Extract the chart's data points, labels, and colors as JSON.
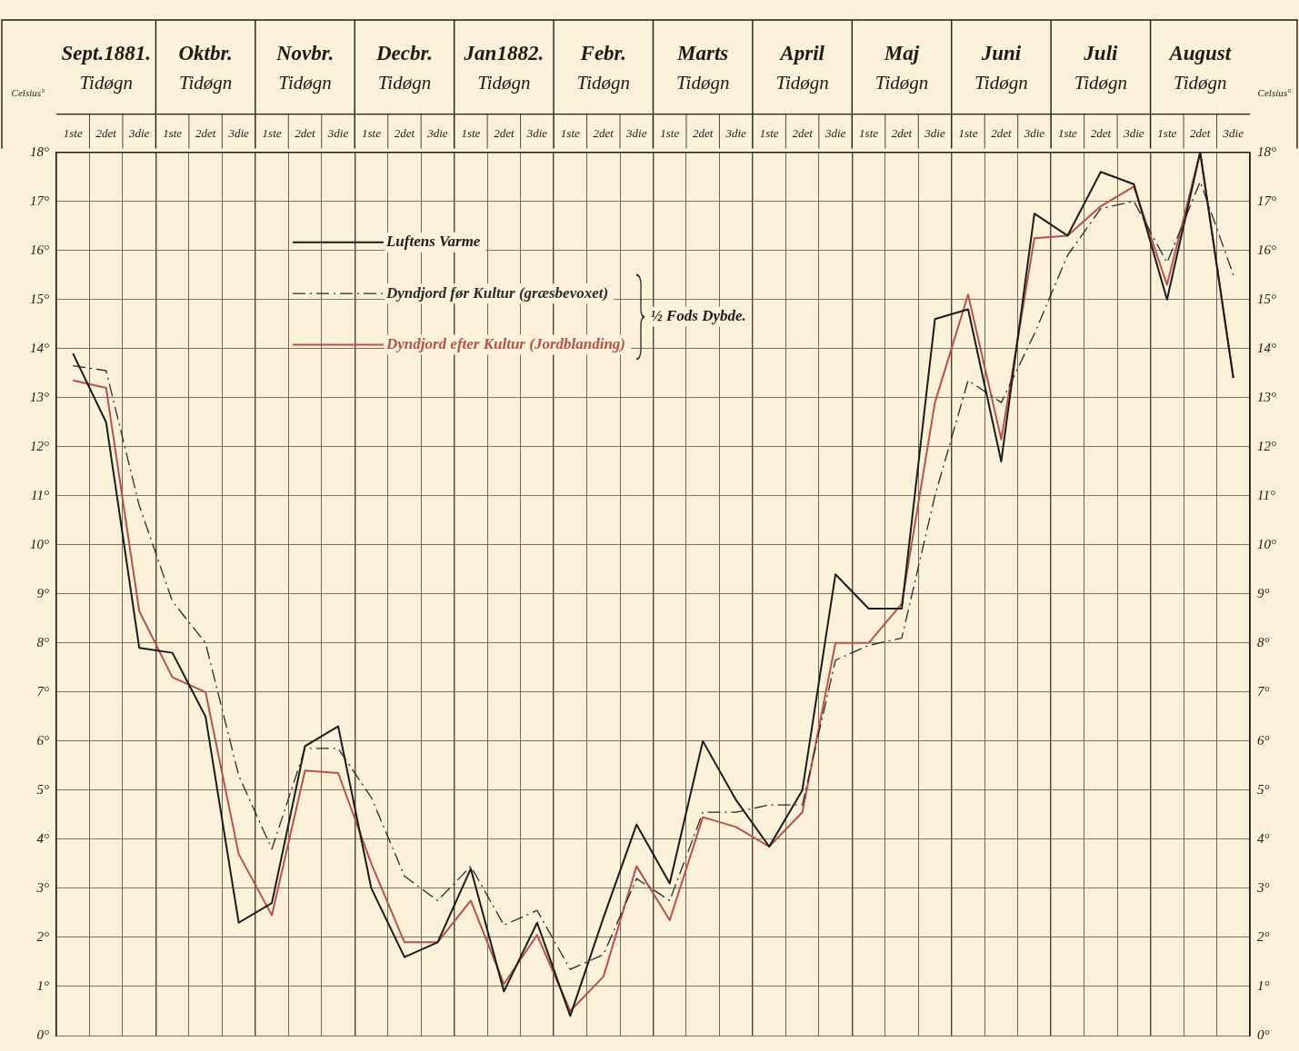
{
  "chart_data": {
    "type": "line",
    "categories": [
      "1ste",
      "2det",
      "3die",
      "1ste",
      "2det",
      "3die",
      "1ste",
      "2det",
      "3die",
      "1ste",
      "2det",
      "3die",
      "1ste",
      "2det",
      "3die",
      "1ste",
      "2det",
      "3die",
      "1ste",
      "2det",
      "3die",
      "1ste",
      "2det",
      "3die",
      "1ste",
      "2det",
      "3die",
      "1ste",
      "2det",
      "3die",
      "1ste",
      "2det",
      "3die",
      "1ste",
      "2det",
      "3die"
    ],
    "series": [
      {
        "name": "Luftens Varme",
        "color": "#1a1a1a",
        "line_style": "solid",
        "values": [
          13.9,
          12.5,
          7.9,
          7.8,
          6.5,
          2.3,
          2.7,
          5.9,
          6.3,
          3.0,
          1.6,
          1.9,
          3.4,
          0.9,
          2.3,
          0.4,
          2.4,
          4.3,
          3.1,
          6.0,
          4.8,
          3.85,
          5.0,
          9.4,
          8.7,
          8.7,
          14.6,
          14.8,
          11.7,
          16.75,
          16.3,
          17.6,
          17.35,
          15.0,
          18.0,
          13.4
        ]
      },
      {
        "name": "Dyndjord før Kultur (græsbevoxet)",
        "color": "#2a2a2a",
        "line_style": "dashed",
        "values": [
          13.65,
          13.55,
          10.8,
          8.85,
          8.0,
          5.3,
          3.8,
          5.85,
          5.85,
          4.85,
          3.25,
          2.75,
          3.45,
          2.25,
          2.55,
          1.35,
          1.65,
          3.2,
          2.75,
          4.55,
          4.55,
          4.7,
          4.7,
          7.65,
          7.95,
          8.1,
          11.0,
          13.35,
          12.9,
          14.3,
          15.9,
          16.85,
          17.0,
          15.75,
          17.4,
          15.5
        ]
      },
      {
        "name": "Dyndjord efter Kultur (Jordblanding)",
        "color": "#b5524a",
        "line_style": "solid",
        "values": [
          13.35,
          13.2,
          8.65,
          7.3,
          7.0,
          3.7,
          2.45,
          5.4,
          5.35,
          3.5,
          1.9,
          1.9,
          2.75,
          1.05,
          2.05,
          0.5,
          1.2,
          3.45,
          2.35,
          4.45,
          4.25,
          3.85,
          4.55,
          8.0,
          8.0,
          8.8,
          12.9,
          15.1,
          12.15,
          16.25,
          16.3,
          16.9,
          17.3,
          15.3,
          18.0,
          13.4
        ]
      }
    ],
    "ylabel": "Celsius°",
    "y2label": "Celsius°",
    "ylim": [
      0,
      18
    ],
    "yticks": [
      {
        "value": 0,
        "label": "0°"
      },
      {
        "value": 1,
        "label": "1°"
      },
      {
        "value": 2,
        "label": "2°"
      },
      {
        "value": 3,
        "label": "3°"
      },
      {
        "value": 4,
        "label": "4°"
      },
      {
        "value": 5,
        "label": "5°"
      },
      {
        "value": 6,
        "label": "6°"
      },
      {
        "value": 7,
        "label": "7°"
      },
      {
        "value": 8,
        "label": "8°"
      },
      {
        "value": 9,
        "label": "9°"
      },
      {
        "value": 10,
        "label": "10°"
      },
      {
        "value": 11,
        "label": "11°"
      },
      {
        "value": 12,
        "label": "12°"
      },
      {
        "value": 13,
        "label": "13°"
      },
      {
        "value": 14,
        "label": "14°"
      },
      {
        "value": 15,
        "label": "15°"
      },
      {
        "value": 16,
        "label": "16°"
      },
      {
        "value": 17,
        "label": "17°"
      },
      {
        "value": 18,
        "label": "18°"
      }
    ],
    "y2lim": [
      0,
      18
    ],
    "y2ticks": [
      {
        "value": 0,
        "label": "0°"
      },
      {
        "value": 1,
        "label": "1°"
      },
      {
        "value": 2,
        "label": "2°"
      },
      {
        "value": 3,
        "label": "3°"
      },
      {
        "value": 4,
        "label": "4°"
      },
      {
        "value": 5,
        "label": "5°"
      },
      {
        "value": 6,
        "label": "6°"
      },
      {
        "value": 7,
        "label": "7°"
      },
      {
        "value": 8,
        "label": "8°"
      },
      {
        "value": 9,
        "label": "9°"
      },
      {
        "value": 10,
        "label": "10°"
      },
      {
        "value": 11,
        "label": "11°"
      },
      {
        "value": 12,
        "label": "12°"
      },
      {
        "value": 13,
        "label": "13°"
      },
      {
        "value": 14,
        "label": "14°"
      },
      {
        "value": 15,
        "label": "15°"
      },
      {
        "value": 16,
        "label": "16°"
      },
      {
        "value": 17,
        "label": "17°"
      },
      {
        "value": 18,
        "label": "18°"
      }
    ],
    "annotations": [
      "Sept.1881. Tidøgn",
      "Oktbr. Tidøgn",
      "Novbr. Tidøgn",
      "Decbr. Tidøgn",
      "Jan1882. Tidøgn",
      "Febr. Tidøgn",
      "Marts Tidøgn",
      "April Tidøgn",
      "Maj Tidøgn",
      "Juni Tidøgn",
      "Juli Tidøgn",
      "August Tidøgn",
      "½ Fods Dybde."
    ],
    "grid": true,
    "legend": "top left"
  }
}
